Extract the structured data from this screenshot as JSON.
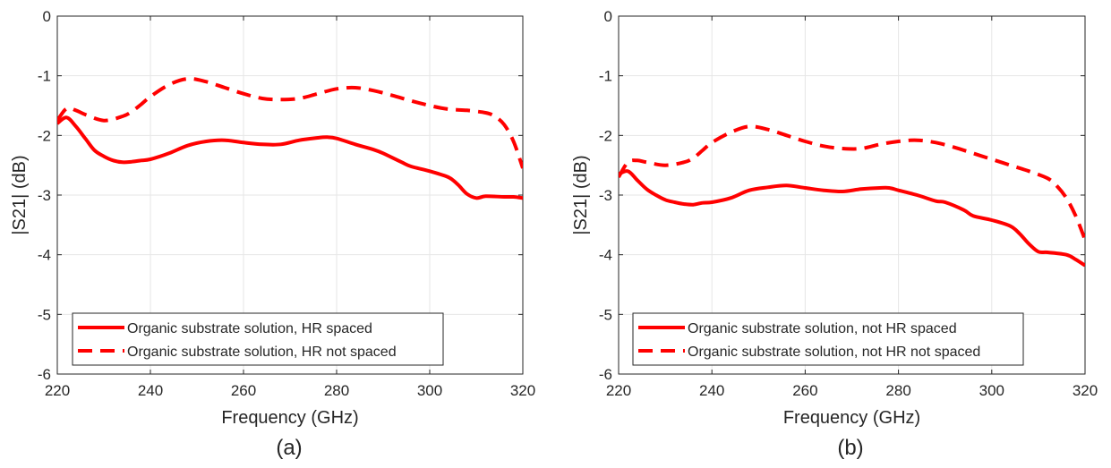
{
  "figure": {
    "panels": [
      {
        "label": "(a)"
      },
      {
        "label": "(b)"
      }
    ]
  },
  "colors": {
    "series": "#ff0000",
    "grid": "#e6e6e6",
    "axis": "#262626"
  },
  "chart_data": [
    {
      "type": "line",
      "title": "",
      "xlabel": "Frequency (GHz)",
      "ylabel": "|S21| (dB)",
      "xlim": [
        220,
        320
      ],
      "ylim": [
        -6,
        0
      ],
      "xticks": [
        220,
        240,
        260,
        280,
        300,
        320
      ],
      "yticks": [
        0,
        -1,
        -2,
        -3,
        -4,
        -5,
        -6
      ],
      "grid": true,
      "legend_position": "bottom-left",
      "series": [
        {
          "name": "Organic substrate solution, HR spaced",
          "style": "solid",
          "x": [
            220,
            222,
            224,
            226,
            228,
            230,
            232,
            234,
            236,
            238,
            240,
            244,
            248,
            252,
            256,
            260,
            264,
            268,
            272,
            276,
            278,
            280,
            284,
            288,
            290,
            294,
            296,
            300,
            304,
            306,
            308,
            310,
            312,
            316,
            318,
            320
          ],
          "y": [
            -1.8,
            -1.7,
            -1.85,
            -2.05,
            -2.25,
            -2.35,
            -2.42,
            -2.45,
            -2.44,
            -2.42,
            -2.4,
            -2.3,
            -2.17,
            -2.1,
            -2.08,
            -2.12,
            -2.15,
            -2.15,
            -2.08,
            -2.04,
            -2.03,
            -2.05,
            -2.15,
            -2.24,
            -2.3,
            -2.45,
            -2.52,
            -2.6,
            -2.7,
            -2.82,
            -2.98,
            -3.05,
            -3.02,
            -3.03,
            -3.03,
            -3.05
          ]
        },
        {
          "name": "Organic substrate solution, HR not spaced",
          "style": "dashed",
          "x": [
            220,
            222,
            224,
            226,
            230,
            234,
            236,
            238,
            240,
            244,
            248,
            252,
            256,
            260,
            264,
            268,
            272,
            276,
            280,
            284,
            288,
            292,
            296,
            300,
            304,
            308,
            312,
            314,
            316,
            318,
            320
          ],
          "y": [
            -1.75,
            -1.55,
            -1.58,
            -1.65,
            -1.75,
            -1.68,
            -1.6,
            -1.48,
            -1.35,
            -1.15,
            -1.05,
            -1.1,
            -1.2,
            -1.3,
            -1.38,
            -1.4,
            -1.38,
            -1.3,
            -1.22,
            -1.2,
            -1.25,
            -1.33,
            -1.42,
            -1.5,
            -1.56,
            -1.58,
            -1.62,
            -1.68,
            -1.82,
            -2.1,
            -2.55
          ]
        }
      ]
    },
    {
      "type": "line",
      "title": "",
      "xlabel": "Frequency (GHz)",
      "ylabel": "|S21| (dB)",
      "xlim": [
        220,
        320
      ],
      "ylim": [
        -6,
        0
      ],
      "xticks": [
        220,
        240,
        260,
        280,
        300,
        320
      ],
      "yticks": [
        0,
        -1,
        -2,
        -3,
        -4,
        -5,
        -6
      ],
      "grid": true,
      "legend_position": "bottom-left",
      "series": [
        {
          "name": "Organic substrate solution, not HR spaced",
          "style": "solid",
          "x": [
            220,
            222,
            224,
            226,
            228,
            230,
            232,
            234,
            236,
            238,
            240,
            244,
            248,
            252,
            256,
            260,
            264,
            268,
            272,
            276,
            278,
            280,
            284,
            288,
            290,
            294,
            296,
            300,
            304,
            306,
            308,
            310,
            312,
            316,
            318,
            320
          ],
          "y": [
            -2.65,
            -2.6,
            -2.75,
            -2.9,
            -3.0,
            -3.08,
            -3.12,
            -3.15,
            -3.16,
            -3.13,
            -3.12,
            -3.05,
            -2.92,
            -2.87,
            -2.84,
            -2.88,
            -2.92,
            -2.94,
            -2.9,
            -2.88,
            -2.88,
            -2.92,
            -3.0,
            -3.1,
            -3.12,
            -3.25,
            -3.35,
            -3.42,
            -3.52,
            -3.65,
            -3.82,
            -3.95,
            -3.96,
            -4.0,
            -4.08,
            -4.18
          ]
        },
        {
          "name": "Organic substrate solution, not HR not spaced",
          "style": "dashed",
          "x": [
            220,
            222,
            224,
            226,
            230,
            234,
            236,
            238,
            240,
            244,
            248,
            252,
            256,
            260,
            264,
            268,
            272,
            276,
            280,
            284,
            288,
            292,
            296,
            300,
            304,
            308,
            312,
            314,
            316,
            318,
            320
          ],
          "y": [
            -2.7,
            -2.45,
            -2.42,
            -2.45,
            -2.5,
            -2.45,
            -2.38,
            -2.25,
            -2.12,
            -1.95,
            -1.85,
            -1.9,
            -2.0,
            -2.1,
            -2.18,
            -2.22,
            -2.22,
            -2.15,
            -2.1,
            -2.08,
            -2.12,
            -2.2,
            -2.3,
            -2.4,
            -2.5,
            -2.6,
            -2.72,
            -2.85,
            -3.05,
            -3.35,
            -3.75
          ]
        }
      ]
    }
  ]
}
